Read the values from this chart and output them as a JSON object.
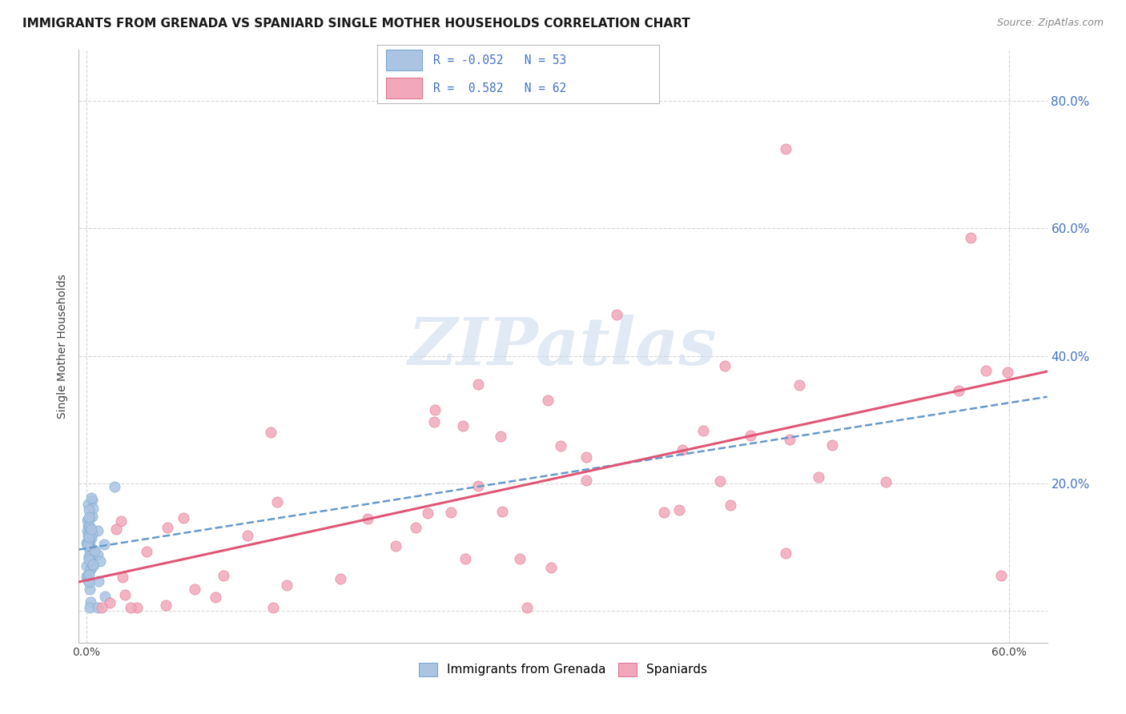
{
  "title": "IMMIGRANTS FROM GRENADA VS SPANIARD SINGLE MOTHER HOUSEHOLDS CORRELATION CHART",
  "source": "Source: ZipAtlas.com",
  "ylabel": "Single Mother Households",
  "legend_label_1": "Immigrants from Grenada",
  "legend_label_2": "Spaniards",
  "R1": -0.052,
  "N1": 53,
  "R2": 0.582,
  "N2": 62,
  "color1": "#aac4e2",
  "color2": "#f2a8ba",
  "color1_edge": "#7aaad0",
  "color2_edge": "#e07898",
  "line_color1": "#6699cc",
  "line_color2": "#e05575",
  "axis_label_color": "#4472c4",
  "watermark": "ZIPatlas",
  "xlim_min": -0.005,
  "xlim_max": 0.625,
  "ylim_min": -0.05,
  "ylim_max": 0.88,
  "ytick_vals": [
    0.0,
    0.2,
    0.4,
    0.6,
    0.8
  ],
  "ytick_labels": [
    "",
    "20.0%",
    "40.0%",
    "60.0%",
    "80.0%"
  ],
  "xtick_vals": [
    0.0,
    0.6
  ],
  "xtick_labels": [
    "0.0%",
    "60.0%"
  ],
  "title_fontsize": 11,
  "source_fontsize": 9,
  "tick_fontsize": 10,
  "ylabel_fontsize": 10,
  "watermark_fontsize": 60
}
